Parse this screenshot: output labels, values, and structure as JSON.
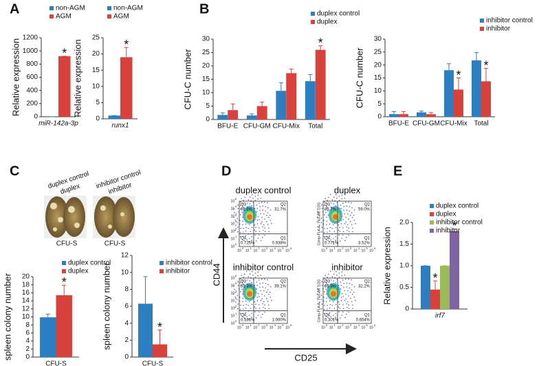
{
  "panel_labels": [
    "A",
    "B",
    "C",
    "D",
    "E"
  ],
  "chart_data": [
    {
      "type": "bar",
      "y_label": "Relative expression",
      "categories": [
        "miR-142a-3p"
      ],
      "series": [
        {
          "name": "non-AGM",
          "color": "#2e7ec2",
          "values": [
            1
          ],
          "errors": [
            0
          ]
        },
        {
          "name": "AGM",
          "color": "#d8413c",
          "values": [
            920
          ],
          "errors": [
            0
          ],
          "stars": [
            "*"
          ]
        }
      ],
      "ylim": [
        0,
        1200
      ],
      "yticks": [
        0,
        200,
        400,
        600,
        800,
        1000,
        1200
      ]
    },
    {
      "type": "bar",
      "y_label": "Relative expression",
      "categories": [
        "runx1"
      ],
      "series": [
        {
          "name": "non-AGM",
          "color": "#2e7ec2",
          "values": [
            1
          ],
          "errors": [
            0
          ]
        },
        {
          "name": "AGM",
          "color": "#d8413c",
          "values": [
            19
          ],
          "errors": [
            3
          ],
          "stars": [
            "*"
          ]
        }
      ],
      "ylim": [
        0,
        25
      ],
      "yticks": [
        0,
        5,
        10,
        15,
        20,
        25
      ]
    },
    {
      "type": "bar",
      "y_label": "CFU-C number",
      "categories": [
        "BFU-E",
        "CFU-GM",
        "CFU-Mix",
        "Total"
      ],
      "series": [
        {
          "name": "duplex control",
          "color": "#2e7ec2",
          "values": [
            1.7,
            1.5,
            10.7,
            14.3
          ],
          "errors": [
            0.8,
            0.6,
            3,
            2.5
          ]
        },
        {
          "name": "duplex",
          "color": "#d8413c",
          "values": [
            3.5,
            5,
            17.3,
            26
          ],
          "errors": [
            2.3,
            1.5,
            1.5,
            1.5
          ],
          "stars": [
            null,
            null,
            null,
            "*"
          ]
        }
      ],
      "ylim": [
        0,
        30
      ],
      "yticks": [
        0,
        5,
        10,
        15,
        20,
        25,
        30
      ]
    },
    {
      "type": "bar",
      "y_label": "CFU-C number",
      "categories": [
        "BFU-E",
        "CFU-GM",
        "CFU-Mix",
        "Total"
      ],
      "series": [
        {
          "name": "inhibitor control",
          "color": "#2e7ec2",
          "values": [
            1,
            1.7,
            18,
            21.8
          ],
          "errors": [
            1,
            0.5,
            2.5,
            3
          ]
        },
        {
          "name": "inhibitor",
          "color": "#d8413c",
          "values": [
            1,
            1,
            10.5,
            13.7
          ],
          "errors": [
            1,
            0.6,
            4.5,
            5
          ],
          "stars": [
            null,
            null,
            "*",
            "*"
          ]
        }
      ],
      "ylim": [
        0,
        30
      ],
      "yticks": [
        0,
        5,
        10,
        15,
        20,
        25,
        30
      ]
    },
    {
      "type": "bar",
      "y_label": "spleen colony number",
      "categories": [
        "CFU-S"
      ],
      "series": [
        {
          "name": "duplex control",
          "color": "#2e7ec2",
          "values": [
            9.9
          ],
          "errors": [
            0.8
          ]
        },
        {
          "name": "duplex",
          "color": "#d8413c",
          "values": [
            15.4
          ],
          "errors": [
            2.5
          ],
          "stars": [
            "*"
          ]
        }
      ],
      "ylim": [
        0,
        20
      ],
      "yticks": [
        0,
        2,
        4,
        6,
        8,
        10,
        12,
        14,
        16,
        18,
        20
      ]
    },
    {
      "type": "bar",
      "y_label": "spleen colony number",
      "categories": [
        "CFU-S"
      ],
      "series": [
        {
          "name": "inhibitor control",
          "color": "#2e7ec2",
          "values": [
            6.3
          ],
          "errors": [
            3.2
          ]
        },
        {
          "name": "inhibitor",
          "color": "#d8413c",
          "values": [
            1.5
          ],
          "errors": [
            1.7
          ],
          "stars": [
            "*"
          ]
        }
      ],
      "ylim": [
        0,
        12
      ],
      "yticks": [
        0,
        2,
        4,
        6,
        8,
        10,
        12
      ]
    },
    {
      "type": "bar",
      "y_label": "Relative expression",
      "categories": [
        "irf7"
      ],
      "series": [
        {
          "name": "duplex control",
          "color": "#2e7ec2",
          "values": [
            1.0
          ],
          "errors": [
            0
          ]
        },
        {
          "name": "duplex",
          "color": "#d8413c",
          "values": [
            0.45
          ],
          "errors": [
            0.2
          ],
          "stars": [
            "*"
          ]
        },
        {
          "name": "inhibitor control",
          "color": "#9bbb59",
          "values": [
            1.0
          ],
          "errors": [
            0
          ]
        },
        {
          "name": "inhibitor",
          "color": "#8064a2",
          "values": [
            1.8
          ],
          "errors": [
            0.05
          ],
          "stars": [
            "*"
          ]
        }
      ],
      "ylim": [
        0,
        2.0
      ],
      "yticks": [
        0,
        0.5,
        {
          "value": 1.0,
          "label": "1.0"
        },
        1.5,
        {
          "value": 2.0,
          "label": "2.0"
        }
      ]
    }
  ],
  "spleen_images": [
    {
      "labels": [
        "duplex control",
        "duplex"
      ],
      "caption": "CFU-S"
    },
    {
      "labels": [
        "inhibitor control",
        "inhibitor"
      ],
      "caption": "CFU-S"
    }
  ],
  "flow": {
    "y_label": "CD44",
    "x_label": "CD25",
    "y_channel": "Comp-FL4-A:: FL6 INT LOG",
    "tick_base": "10",
    "tick_exponents": [
      "0",
      "1",
      "2",
      "3",
      "4",
      "5",
      "6"
    ],
    "quadrant_names": [
      "Q3",
      "Q2",
      "Q4",
      "Q1"
    ],
    "plots": [
      {
        "title": "duplex control",
        "percents": [
          "66.6%",
          "31.7%",
          "0.725%",
          "0.938%"
        ]
      },
      {
        "title": "duplex",
        "percents": [
          "36.7%",
          "59.0%",
          "0.771%",
          "3.52%"
        ]
      },
      {
        "title": "inhibitor control",
        "percents": [
          "59.3%",
          "39.1%",
          "0.586%",
          "1.000%"
        ]
      },
      {
        "title": "inhibitor",
        "percents": [
          "66.8%",
          "32.2%",
          "0.301%",
          "0.654%"
        ]
      }
    ]
  }
}
